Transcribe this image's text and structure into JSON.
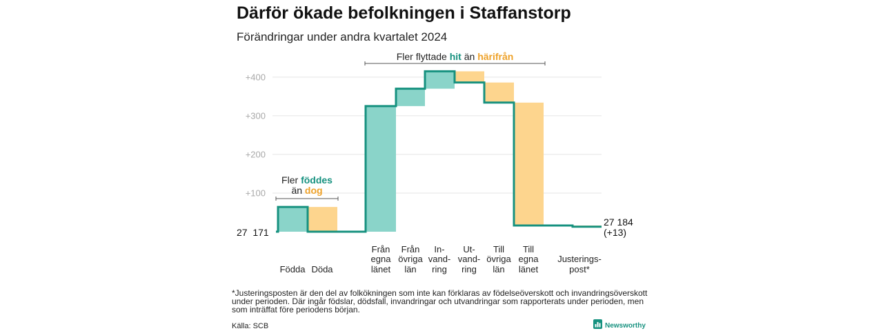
{
  "chart_data": {
    "type": "bar",
    "waterfall": true,
    "title": "Därför ökade befolkningen i Staffanstorp",
    "subtitle": "Förändringar under andra kvartalet 2024",
    "categories": [
      [
        "Födda"
      ],
      [
        "Döda"
      ],
      [
        "Från",
        "egna",
        "länet"
      ],
      [
        "Från",
        "övriga",
        "län"
      ],
      [
        "In-",
        "vand-",
        "ring"
      ],
      [
        "Ut-",
        "vand-",
        "ring"
      ],
      [
        "Till",
        "övriga",
        "län"
      ],
      [
        "Till",
        "egna",
        "länet"
      ],
      [
        "Justerings-",
        "post*"
      ]
    ],
    "values": [
      64,
      -64,
      325,
      45,
      45,
      -29,
      -52,
      -318,
      -3
    ],
    "start_value": 27171,
    "start_label": "27  171",
    "end_value": 27184,
    "end_label": "27 184",
    "end_change_label": "(+13)",
    "yticks": [
      100,
      200,
      300,
      400
    ],
    "ytick_labels": [
      "+100",
      "+200",
      "+300",
      "+400"
    ],
    "ylim": [
      0,
      430
    ],
    "grid": true,
    "annotations": {
      "migration": {
        "prefix": "Fler flyttade",
        "increase_word": "hit",
        "connector": "än",
        "decrease_word": "härifrån"
      },
      "births": {
        "prefix": "Fler",
        "increase_word": "föddes",
        "connector": "än",
        "decrease_word": "dog"
      }
    }
  },
  "footnote": [
    "*Justeringsposten är den del av folkökningen som inte kan förklaras av födelseöverskott och invandringsöverskott",
    "under perioden. Där ingår födslar, dödsfall, invandringar och utvandringar som rapporterats under perioden, men",
    "som inträffat före periodens början."
  ],
  "source": "Källa: SCB",
  "logo": {
    "icon": "newsworthy-logo-icon",
    "text": "Newsworthy"
  },
  "colors": {
    "increase_fill": "#8ad4c9",
    "decrease_fill": "#fdd58e",
    "line": "#16917f",
    "increase_text": "#16917f",
    "decrease_text": "#eea128",
    "grid": "#e4e4e4",
    "tick_text": "#a9a9a9",
    "bracket": "#555555"
  }
}
